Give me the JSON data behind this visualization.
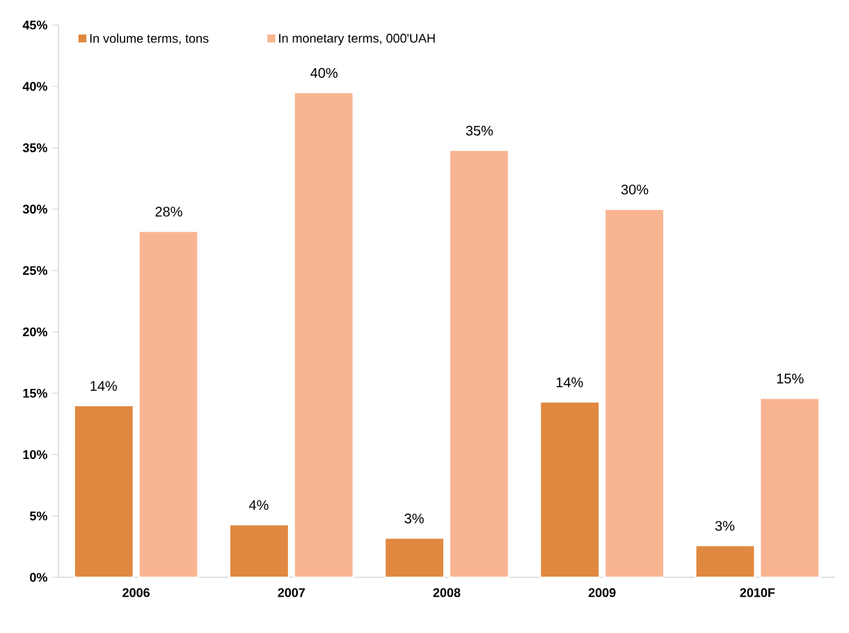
{
  "chart_data": {
    "type": "bar",
    "categories": [
      "2006",
      "2007",
      "2008",
      "2009",
      "2010F"
    ],
    "series": [
      {
        "name": "In volume terms, tons",
        "color": "#e0883f",
        "values": [
          14.0,
          4.3,
          3.2,
          14.3,
          2.6
        ],
        "value_labels": [
          "14%",
          "4%",
          "3%",
          "14%",
          "3%"
        ]
      },
      {
        "name": "In monetary terms, 000'UAH",
        "color": "#f9b592",
        "values": [
          28.2,
          39.5,
          34.8,
          30.0,
          14.6
        ],
        "value_labels": [
          "28%",
          "40%",
          "35%",
          "30%",
          "15%"
        ]
      }
    ],
    "ylim": [
      0,
      45
    ],
    "yticks": [
      {
        "value": 0,
        "label": "0%"
      },
      {
        "value": 5,
        "label": "5%"
      },
      {
        "value": 10,
        "label": "10%"
      },
      {
        "value": 15,
        "label": "15%"
      },
      {
        "value": 20,
        "label": "20%"
      },
      {
        "value": 25,
        "label": "25%"
      },
      {
        "value": 30,
        "label": "30%"
      },
      {
        "value": 35,
        "label": "35%"
      },
      {
        "value": 40,
        "label": "40%"
      },
      {
        "value": 45,
        "label": "45%"
      }
    ],
    "legend": "top left",
    "grid": false
  }
}
